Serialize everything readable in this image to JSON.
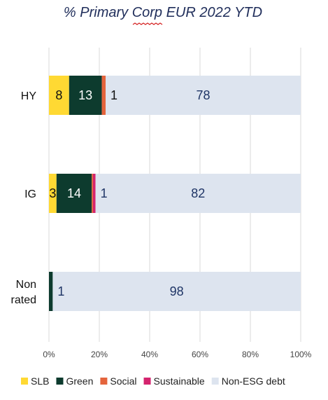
{
  "chart_data": {
    "type": "bar",
    "orientation": "horizontal",
    "stacked": true,
    "title": "% Primary Corp EUR 2022 YTD",
    "xlabel": "",
    "ylabel": "",
    "xlim": [
      0,
      100
    ],
    "x_ticks": [
      "0%",
      "20%",
      "40%",
      "60%",
      "80%",
      "100%"
    ],
    "grid": "vertical",
    "legend_position": "bottom",
    "categories": [
      "HY",
      "IG",
      "Non rated"
    ],
    "series": [
      {
        "name": "SLB",
        "color": "#ffd933",
        "values": [
          8,
          3,
          0
        ],
        "labels": [
          "8",
          "3",
          ""
        ]
      },
      {
        "name": "Green",
        "color": "#0d3b2e",
        "values": [
          13,
          14,
          1.5
        ],
        "labels": [
          "13",
          "14",
          ""
        ]
      },
      {
        "name": "Social",
        "color": "#e4643c",
        "values": [
          1.5,
          0.5,
          0
        ],
        "labels": [
          "",
          "",
          ""
        ]
      },
      {
        "name": "Sustainable",
        "color": "#d4246e",
        "values": [
          0,
          1,
          0
        ],
        "labels": [
          "",
          "",
          ""
        ]
      },
      {
        "name": "Non-ESG debt",
        "color": "#dde4ef",
        "values": [
          77.5,
          81.5,
          98.5
        ],
        "labels": [
          "78",
          "82",
          "98"
        ]
      }
    ],
    "side_labels": [
      "1",
      "1",
      "1"
    ]
  }
}
